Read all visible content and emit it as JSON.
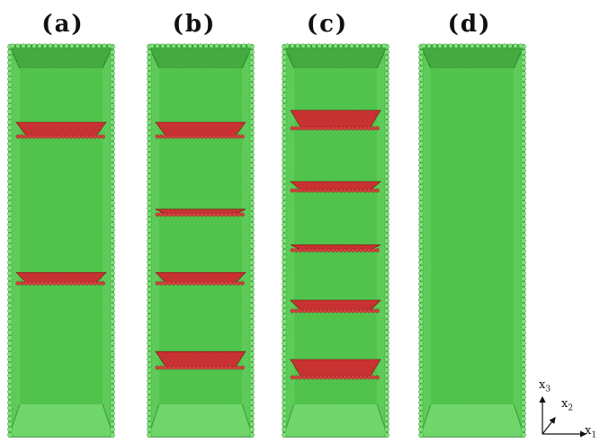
{
  "panels": [
    {
      "label": "(a)",
      "layers": [
        {
          "pos": 0.2,
          "thick": 0.08
        },
        {
          "pos": 0.58,
          "thick": 0.06
        }
      ]
    },
    {
      "label": "(b)",
      "layers": [
        {
          "pos": 0.2,
          "thick": 0.08
        },
        {
          "pos": 0.42,
          "thick": 0.03
        },
        {
          "pos": 0.58,
          "thick": 0.06
        },
        {
          "pos": 0.78,
          "thick": 0.09
        }
      ]
    },
    {
      "label": "(c)",
      "layers": [
        {
          "pos": 0.17,
          "thick": 0.1
        },
        {
          "pos": 0.35,
          "thick": 0.05
        },
        {
          "pos": 0.51,
          "thick": 0.03
        },
        {
          "pos": 0.65,
          "thick": 0.06
        },
        {
          "pos": 0.8,
          "thick": 0.1
        }
      ]
    },
    {
      "label": "(d)",
      "layers": []
    }
  ],
  "axes": {
    "x1": {
      "base": "x",
      "sub": "1"
    },
    "x2": {
      "base": "x",
      "sub": "2"
    },
    "x3": {
      "base": "x",
      "sub": "3"
    }
  },
  "colors": {
    "green_fill": "#4fc24a",
    "green_light": "#7fe07a",
    "green_dark": "#2f8f2c",
    "red_fill": "#c02828",
    "red_dark": "#7a1010"
  }
}
